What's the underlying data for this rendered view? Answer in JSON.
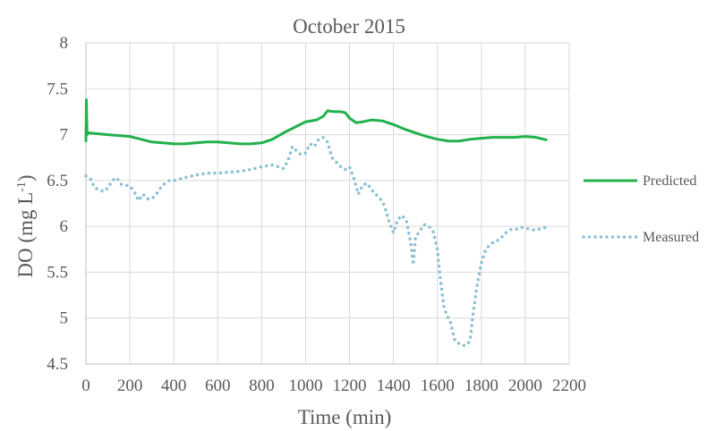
{
  "chart_data": {
    "type": "line",
    "title": "October 2015",
    "xlabel": "Time (min)",
    "ylabel": "DO (mg L",
    "ylabel_sup": "-1",
    "ylabel_close": ")",
    "xlim": [
      0,
      2200
    ],
    "ylim": [
      4.5,
      8
    ],
    "x_ticks": [
      0,
      200,
      400,
      600,
      800,
      1000,
      1200,
      1400,
      1600,
      1800,
      2000,
      2200
    ],
    "y_ticks": [
      4.5,
      5,
      5.5,
      6,
      6.5,
      7,
      7.5,
      8
    ],
    "y_tick_labels": [
      "4.5",
      "5",
      "5.5",
      "6",
      "6.5",
      "7",
      "7.5",
      "8"
    ],
    "grid": true,
    "legend_position": "right",
    "series": [
      {
        "name": "Predicted",
        "style": "solid",
        "color": "#22b14c",
        "x": [
          0,
          2,
          5,
          10,
          50,
          100,
          150,
          200,
          250,
          300,
          350,
          400,
          450,
          500,
          550,
          600,
          650,
          700,
          750,
          800,
          850,
          900,
          950,
          1000,
          1050,
          1080,
          1100,
          1130,
          1160,
          1180,
          1200,
          1230,
          1260,
          1300,
          1350,
          1400,
          1450,
          1500,
          1550,
          1600,
          1650,
          1700,
          1750,
          1800,
          1850,
          1900,
          1950,
          2000,
          2050,
          2100
        ],
        "y": [
          6.92,
          7.38,
          7.0,
          7.02,
          7.01,
          7.0,
          6.99,
          6.98,
          6.95,
          6.92,
          6.91,
          6.9,
          6.9,
          6.91,
          6.92,
          6.92,
          6.91,
          6.9,
          6.9,
          6.91,
          6.95,
          7.02,
          7.08,
          7.14,
          7.16,
          7.2,
          7.26,
          7.25,
          7.25,
          7.24,
          7.18,
          7.13,
          7.14,
          7.16,
          7.15,
          7.11,
          7.06,
          7.02,
          6.98,
          6.95,
          6.93,
          6.93,
          6.95,
          6.96,
          6.97,
          6.97,
          6.97,
          6.98,
          6.97,
          6.94
        ]
      },
      {
        "name": "Measured",
        "style": "dotted",
        "color": "#8bc0d3",
        "x": [
          0,
          20,
          40,
          60,
          80,
          100,
          120,
          140,
          160,
          180,
          200,
          220,
          240,
          260,
          280,
          300,
          320,
          340,
          360,
          380,
          400,
          450,
          500,
          550,
          600,
          650,
          700,
          750,
          800,
          850,
          900,
          920,
          940,
          960,
          980,
          1000,
          1020,
          1040,
          1060,
          1080,
          1100,
          1120,
          1140,
          1160,
          1180,
          1200,
          1220,
          1240,
          1260,
          1280,
          1300,
          1320,
          1340,
          1360,
          1380,
          1400,
          1420,
          1440,
          1460,
          1480,
          1490,
          1500,
          1520,
          1540,
          1560,
          1580,
          1600,
          1610,
          1620,
          1630,
          1640,
          1660,
          1680,
          1700,
          1720,
          1740,
          1750,
          1760,
          1780,
          1800,
          1820,
          1840,
          1860,
          1880,
          1900,
          1920,
          1940,
          1960,
          1980,
          2000,
          2020,
          2040,
          2060,
          2080,
          2100
        ],
        "y": [
          6.55,
          6.52,
          6.42,
          6.4,
          6.38,
          6.42,
          6.5,
          6.53,
          6.46,
          6.45,
          6.44,
          6.38,
          6.28,
          6.35,
          6.3,
          6.3,
          6.35,
          6.42,
          6.47,
          6.5,
          6.5,
          6.53,
          6.56,
          6.58,
          6.58,
          6.59,
          6.6,
          6.62,
          6.65,
          6.67,
          6.63,
          6.72,
          6.87,
          6.82,
          6.78,
          6.8,
          6.9,
          6.87,
          6.95,
          6.97,
          6.92,
          6.75,
          6.7,
          6.65,
          6.62,
          6.65,
          6.52,
          6.35,
          6.45,
          6.47,
          6.4,
          6.35,
          6.3,
          6.22,
          6.05,
          5.93,
          6.08,
          6.12,
          6.05,
          5.8,
          5.58,
          5.88,
          5.95,
          6.02,
          6.0,
          5.95,
          5.75,
          5.5,
          5.3,
          5.12,
          5.05,
          4.95,
          4.75,
          4.72,
          4.7,
          4.72,
          4.78,
          5.0,
          5.35,
          5.6,
          5.75,
          5.8,
          5.84,
          5.85,
          5.9,
          5.95,
          5.97,
          5.97,
          5.99,
          5.98,
          5.97,
          5.96,
          5.97,
          5.98,
          5.99
        ]
      }
    ]
  }
}
